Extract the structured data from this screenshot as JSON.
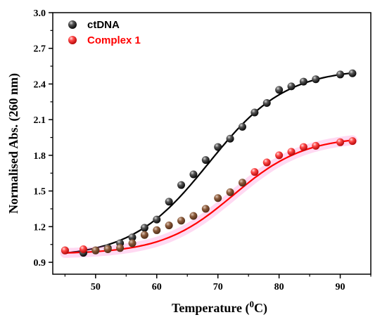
{
  "chart_data": {
    "type": "scatter",
    "xlabel": "Temperature (",
    "xlabel_sup": "0",
    "xlabel_unit": "C)",
    "ylabel": "Normalised Abs. (260 nm)",
    "xlim": [
      43,
      95
    ],
    "ylim": [
      0.8,
      3.0
    ],
    "x_ticks": [
      50,
      60,
      70,
      80,
      90
    ],
    "y_ticks": [
      0.9,
      1.2,
      1.5,
      1.8,
      2.1,
      2.4,
      2.7,
      3.0
    ],
    "x_tick_labels": [
      "50",
      "60",
      "70",
      "80",
      "90"
    ],
    "y_tick_labels": [
      "0.9",
      "1.2",
      "1.5",
      "1.8",
      "2.1",
      "2.4",
      "2.7",
      "3.0"
    ],
    "legend_position": "top-left",
    "series": [
      {
        "name": "ctDNA",
        "color": "#000000",
        "marker": "sphere",
        "x": [
          45,
          48,
          50,
          52,
          54,
          56,
          58,
          60,
          62,
          64,
          66,
          68,
          70,
          72,
          74,
          76,
          78,
          80,
          82,
          84,
          86,
          90,
          92
        ],
        "y": [
          1.0,
          0.98,
          1.0,
          1.02,
          1.06,
          1.11,
          1.19,
          1.26,
          1.41,
          1.55,
          1.64,
          1.76,
          1.87,
          1.94,
          2.04,
          2.16,
          2.24,
          2.35,
          2.38,
          2.42,
          2.44,
          2.48,
          2.49
        ],
        "fit": {
          "bottom": 0.94,
          "top": 2.53,
          "mid": 68.5,
          "width": 6.3
        }
      },
      {
        "name": "Complex 1",
        "color": "#ff0000",
        "marker": "sphere",
        "x": [
          45,
          48,
          50,
          52,
          54,
          56,
          58,
          60,
          62,
          64,
          66,
          68,
          70,
          72,
          74,
          76,
          78,
          80,
          82,
          84,
          86,
          90,
          92
        ],
        "y": [
          1.0,
          1.01,
          1.0,
          1.01,
          1.02,
          1.06,
          1.13,
          1.17,
          1.21,
          1.25,
          1.29,
          1.35,
          1.44,
          1.49,
          1.57,
          1.66,
          1.74,
          1.8,
          1.83,
          1.87,
          1.88,
          1.91,
          1.92
        ],
        "fit": {
          "bottom": 0.97,
          "top": 1.96,
          "mid": 72.5,
          "width": 5.8
        }
      }
    ]
  }
}
